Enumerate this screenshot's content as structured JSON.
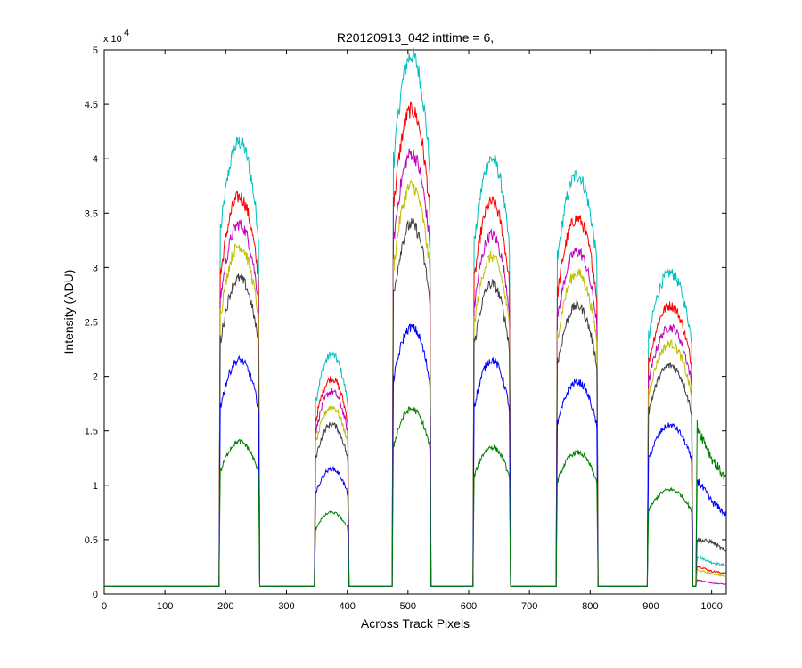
{
  "chart_data": {
    "type": "line",
    "title": "R20120913_042 inttime = 6,",
    "xlabel": "Across Track Pixels",
    "ylabel": "Intensity (ADU)",
    "y_multiplier_base": "x 10",
    "y_multiplier_exp": "4",
    "xlim": [
      0,
      1024
    ],
    "ylim": [
      0,
      50000
    ],
    "xticks": [
      0,
      100,
      200,
      300,
      400,
      500,
      600,
      700,
      800,
      900,
      1000
    ],
    "xtick_labels": [
      "0",
      "100",
      "200",
      "300",
      "400",
      "500",
      "600",
      "700",
      "800",
      "900",
      "1000"
    ],
    "yticks": [
      0,
      5000,
      10000,
      15000,
      20000,
      25000,
      30000,
      35000,
      40000,
      45000,
      50000
    ],
    "ytick_labels": [
      "0",
      "0.5",
      "1",
      "1.5",
      "2",
      "2.5",
      "3",
      "3.5",
      "4",
      "4.5",
      "5"
    ],
    "grid": false,
    "legend": "none",
    "baseline": 700,
    "segments": [
      {
        "x_start": 190,
        "x_end": 255
      },
      {
        "x_start": 347,
        "x_end": 402
      },
      {
        "x_start": 475,
        "x_end": 537
      },
      {
        "x_start": 608,
        "x_end": 668
      },
      {
        "x_start": 745,
        "x_end": 812
      },
      {
        "x_start": 895,
        "x_end": 968
      }
    ],
    "series": [
      {
        "color": "#00bfbf",
        "peaks": [
          41500,
          22000,
          49500,
          40000,
          38500,
          29500
        ],
        "tail": [
          3500,
          2900,
          2600
        ]
      },
      {
        "color": "#ff0000",
        "peaks": [
          36500,
          19800,
          44500,
          36000,
          34500,
          26500
        ],
        "tail": [
          2600,
          2100,
          1900
        ]
      },
      {
        "color": "#bf00bf",
        "peaks": [
          34000,
          18600,
          40500,
          33000,
          31500,
          24500
        ],
        "tail": [
          1300,
          1000,
          900
        ]
      },
      {
        "color": "#bfbf00",
        "peaks": [
          32000,
          17200,
          37500,
          31000,
          29500,
          23000
        ],
        "tail": [
          2200,
          1900,
          1600
        ]
      },
      {
        "color": "#404040",
        "peaks": [
          29000,
          15600,
          34000,
          28500,
          26500,
          21000
        ],
        "tail": [
          5000,
          4800,
          3900
        ]
      },
      {
        "color": "#0000ff",
        "peaks": [
          21500,
          11500,
          24500,
          21500,
          19500,
          15500
        ],
        "tail": [
          10500,
          8500,
          7300
        ]
      },
      {
        "color": "#008000",
        "peaks": [
          14000,
          7500,
          17000,
          13500,
          13000,
          9600
        ],
        "tail": [
          15500,
          12500,
          10500
        ]
      }
    ]
  }
}
